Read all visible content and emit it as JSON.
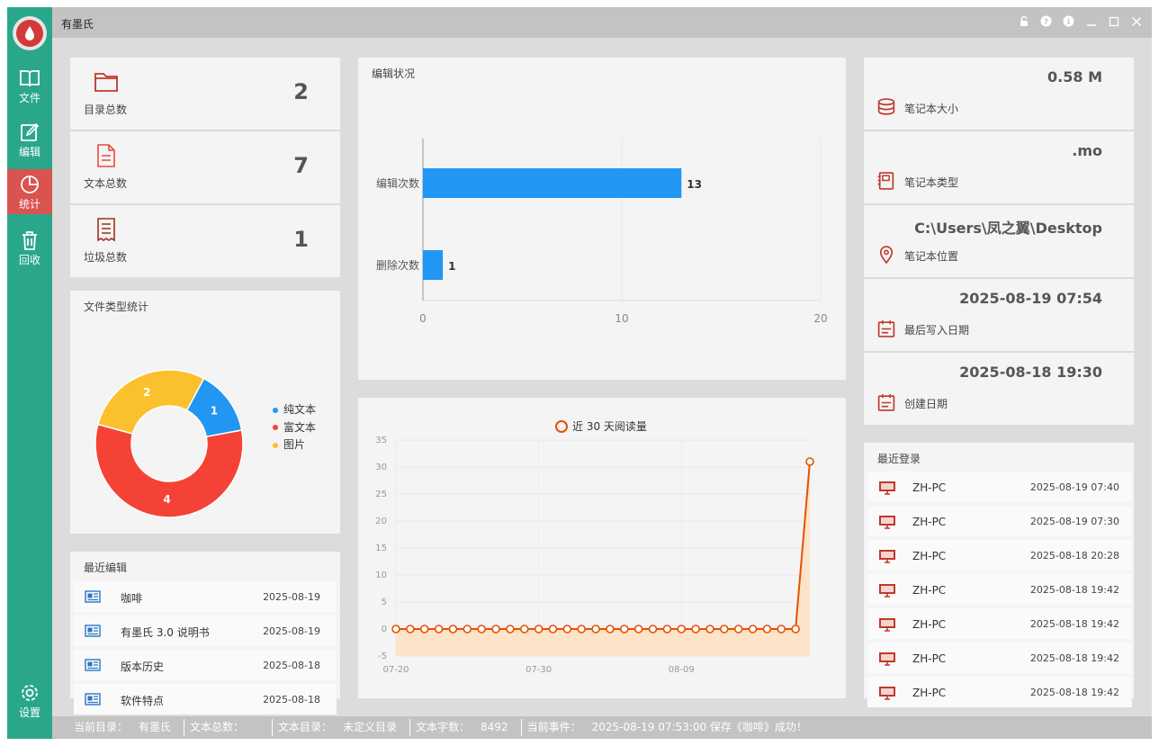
{
  "app": {
    "title": "有墨氏"
  },
  "sidebar": {
    "items": [
      {
        "label": "文件",
        "icon": "book-icon"
      },
      {
        "label": "编辑",
        "icon": "edit-icon"
      },
      {
        "label": "统计",
        "icon": "pie-chart-icon"
      },
      {
        "label": "回收",
        "icon": "trash-icon"
      }
    ],
    "settings_label": "设置"
  },
  "stats": [
    {
      "label": "目录总数",
      "value": "2",
      "icon": "folder-icon"
    },
    {
      "label": "文本总数",
      "value": "7",
      "icon": "document-icon"
    },
    {
      "label": "垃圾总数",
      "value": "1",
      "icon": "receipt-icon"
    }
  ],
  "file_types": {
    "title": "文件类型统计",
    "legend": [
      "纯文本",
      "富文本",
      "图片"
    ]
  },
  "recent_edits": {
    "title": "最近编辑",
    "items": [
      {
        "name": "咖啡",
        "date": "2025-08-19"
      },
      {
        "name": "有墨氏 3.0 说明书",
        "date": "2025-08-19"
      },
      {
        "name": "版本历史",
        "date": "2025-08-18"
      },
      {
        "name": "软件特点",
        "date": "2025-08-18"
      }
    ]
  },
  "edit_status": {
    "title": "编辑状况"
  },
  "read_chart": {
    "legend": "近 30 天阅读量"
  },
  "notebook_info": [
    {
      "value": "0.58 M",
      "label": "笔记本大小",
      "icon": "database-icon"
    },
    {
      "value": ".mo",
      "label": "笔记本类型",
      "icon": "notebook-icon"
    },
    {
      "value": "C:\\Users\\凤之翼\\Desktop",
      "label": "笔记本位置",
      "icon": "location-icon"
    },
    {
      "value": "2025-08-19  07:54",
      "label": "最后写入日期",
      "icon": "calendar-icon"
    },
    {
      "value": "2025-08-18  19:30",
      "label": "创建日期",
      "icon": "calendar-icon"
    }
  ],
  "recent_logins": {
    "title": "最近登录",
    "items": [
      {
        "name": "ZH-PC",
        "date": "2025-08-19 07:40"
      },
      {
        "name": "ZH-PC",
        "date": "2025-08-19 07:30"
      },
      {
        "name": "ZH-PC",
        "date": "2025-08-18 20:28"
      },
      {
        "name": "ZH-PC",
        "date": "2025-08-18 19:42"
      },
      {
        "name": "ZH-PC",
        "date": "2025-08-18 19:42"
      },
      {
        "name": "ZH-PC",
        "date": "2025-08-18 19:42"
      },
      {
        "name": "ZH-PC",
        "date": "2025-08-18 19:42"
      }
    ]
  },
  "statusbar": {
    "current_dir_label": "当前目录：",
    "current_dir": "有墨氏",
    "text_total_label": "文本总数：",
    "text_total": "",
    "text_dir_label": "文本目录：",
    "text_dir": "未定义目录",
    "word_count_label": "文本字数：",
    "word_count": "8492",
    "event_label": "当前事件：",
    "event": "2025-08-19 07:53:00  保存《咖啡》成功！"
  },
  "chart_data": [
    {
      "type": "pie",
      "categories": [
        "纯文本",
        "富文本",
        "图片"
      ],
      "values": [
        1,
        4,
        2
      ],
      "colors": [
        "#2196f3",
        "#f44336",
        "#fbc02d"
      ],
      "title": "文件类型统计"
    },
    {
      "type": "bar",
      "orientation": "horizontal",
      "categories": [
        "编辑次数",
        "删除次数"
      ],
      "values": [
        13,
        1
      ],
      "xlim": [
        0,
        20
      ],
      "xticks": [
        0,
        10,
        20
      ],
      "color": "#2196f3",
      "title": "编辑状况"
    },
    {
      "type": "line",
      "series": [
        {
          "name": "近 30 天阅读量",
          "values": [
            0,
            0,
            0,
            0,
            0,
            0,
            0,
            0,
            0,
            0,
            0,
            0,
            0,
            0,
            0,
            0,
            0,
            0,
            0,
            0,
            0,
            0,
            0,
            0,
            0,
            0,
            0,
            0,
            0,
            31
          ]
        }
      ],
      "ylim": [
        -5,
        35
      ],
      "yticks": [
        -5,
        0,
        5,
        10,
        15,
        20,
        25,
        30,
        35
      ],
      "xticklabels": [
        "07-20",
        "07-30",
        "08-09"
      ],
      "color": "#e65100",
      "fill": "#fde3c8"
    }
  ]
}
